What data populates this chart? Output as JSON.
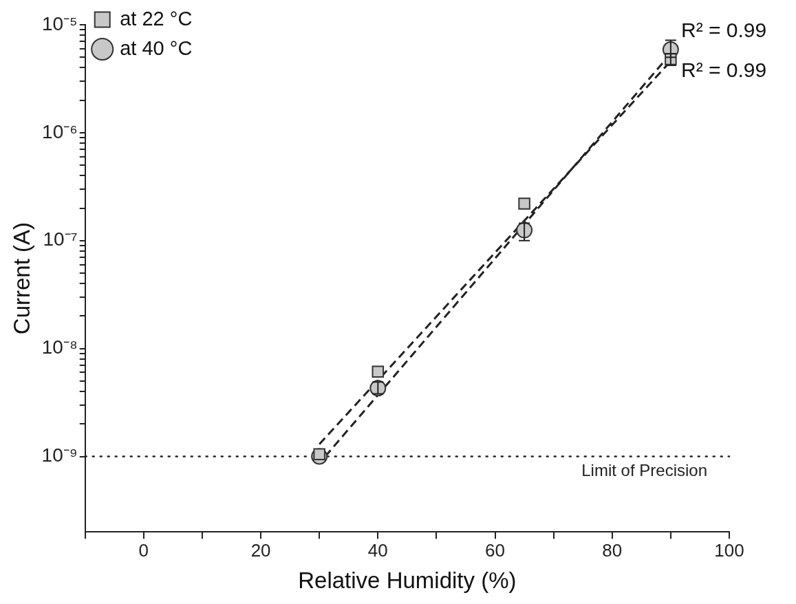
{
  "chart_data": {
    "type": "scatter",
    "xlabel": "Relative Humidity (%)",
    "ylabel": "Current (A)",
    "log": "y",
    "xlim": [
      -10,
      100
    ],
    "xticks": [
      0,
      20,
      40,
      60,
      80,
      100,
      {
        "value": -10,
        "label": null
      },
      {
        "value": 10,
        "label": null
      },
      {
        "value": 30,
        "label": null
      },
      {
        "value": 50,
        "label": null
      },
      {
        "value": 70,
        "label": null
      },
      {
        "value": 90,
        "label": null
      }
    ],
    "ylim": [
      2e-10,
      1e-05
    ],
    "yticks": [
      {
        "value": 1e-09,
        "label": "10⁻⁹"
      },
      {
        "value": 1e-08,
        "label": "10⁻⁸"
      },
      {
        "value": 1e-07,
        "label": "10⁻⁷"
      },
      {
        "value": 1e-06,
        "label": "10⁻⁶"
      },
      {
        "value": 1e-05,
        "label": "10⁻⁵"
      },
      {
        "value": 2e-09,
        "label": null
      },
      {
        "value": 3e-09,
        "label": null
      },
      {
        "value": 4e-09,
        "label": null
      },
      {
        "value": 5e-09,
        "label": null
      },
      {
        "value": 6e-09,
        "label": null
      },
      {
        "value": 7e-09,
        "label": null
      },
      {
        "value": 8e-09,
        "label": null
      },
      {
        "value": 9e-09,
        "label": null
      },
      {
        "value": 2e-08,
        "label": null
      },
      {
        "value": 3e-08,
        "label": null
      },
      {
        "value": 4e-08,
        "label": null
      },
      {
        "value": 5e-08,
        "label": null
      },
      {
        "value": 6e-08,
        "label": null
      },
      {
        "value": 7e-08,
        "label": null
      },
      {
        "value": 8e-08,
        "label": null
      },
      {
        "value": 9e-08,
        "label": null
      },
      {
        "value": 2e-07,
        "label": null
      },
      {
        "value": 3e-07,
        "label": null
      },
      {
        "value": 4e-07,
        "label": null
      },
      {
        "value": 5e-07,
        "label": null
      },
      {
        "value": 6e-07,
        "label": null
      },
      {
        "value": 7e-07,
        "label": null
      },
      {
        "value": 8e-07,
        "label": null
      },
      {
        "value": 9e-07,
        "label": null
      },
      {
        "value": 2e-06,
        "label": null
      },
      {
        "value": 3e-06,
        "label": null
      },
      {
        "value": 4e-06,
        "label": null
      },
      {
        "value": 5e-06,
        "label": null
      },
      {
        "value": 6e-06,
        "label": null
      },
      {
        "value": 7e-06,
        "label": null
      },
      {
        "value": 8e-06,
        "label": null
      },
      {
        "value": 9e-06,
        "label": null
      }
    ],
    "grid": false,
    "legend": "top left",
    "x": [
      30,
      40,
      65,
      90
    ],
    "series": [
      {
        "name": "at 22 °C",
        "color": "#c8c8c8",
        "marker": "square",
        "values": [
          1.05e-09,
          6.1e-09,
          2.2e-07,
          4.8e-06
        ],
        "errors": [
          null,
          null,
          null,
          [
            4.2e-06,
            5.4e-06
          ]
        ]
      },
      {
        "name": "at 40 °C",
        "color": "#c8c8c8",
        "marker": "circle",
        "values": [
          1e-09,
          4.3e-09,
          1.25e-07,
          5.9e-06
        ],
        "errors": [
          null,
          [
            3.8e-09,
            4.9e-09
          ],
          [
            1e-07,
            1.45e-07
          ],
          [
            5e-06,
            7.2e-06
          ]
        ]
      },
      {
        "type": "line",
        "color": "#222222",
        "line_style": "dashed",
        "x": [
          30,
          90
        ],
        "values": [
          1.3e-09,
          4.6e-06
        ]
      },
      {
        "type": "line",
        "color": "#222222",
        "line_style": "dashed",
        "x": [
          31,
          90
        ],
        "values": [
          1e-09,
          5.4e-06
        ]
      }
    ],
    "ref_lines": [
      {
        "axis": "y",
        "value": 1e-09,
        "label": "Limit of Precision",
        "color": "#222222",
        "line_style": "dotted"
      }
    ],
    "annotations": [
      "R² = 0.99",
      "R² = 0.99"
    ]
  }
}
